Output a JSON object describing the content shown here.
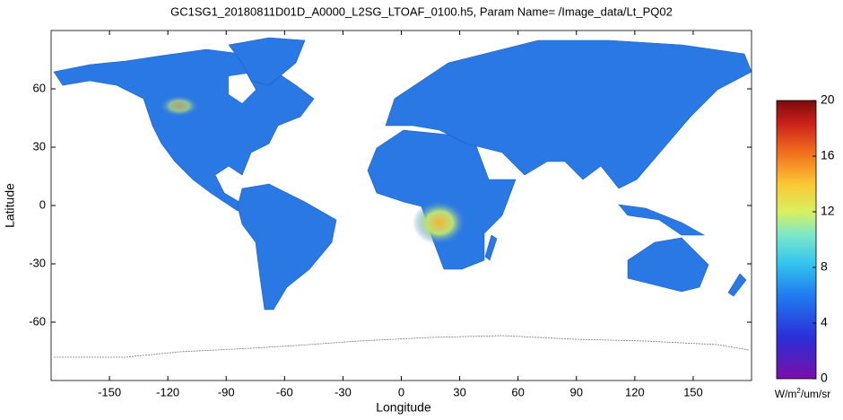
{
  "chart_data": {
    "type": "map",
    "title": "GC1SG1_20180811D01D_A0000_L2SG_LTOAF_0100.h5, Param Name= /Image_data/Lt_PQ02",
    "xlabel": "Longitude",
    "ylabel": "Latitude",
    "xlim": [
      -180,
      180
    ],
    "xticks": [
      -150,
      -120,
      -90,
      -60,
      -30,
      0,
      30,
      60,
      90,
      120,
      150
    ],
    "ylim": [
      -90,
      90
    ],
    "yticks": [
      -60,
      -30,
      0,
      30,
      60
    ],
    "colorbar": {
      "lim": [
        0,
        20
      ],
      "ticks": [
        0,
        4,
        8,
        12,
        16,
        20
      ],
      "label": {
        "base": "W/m",
        "sup": "2",
        "rest": "/um/sr"
      }
    }
  }
}
